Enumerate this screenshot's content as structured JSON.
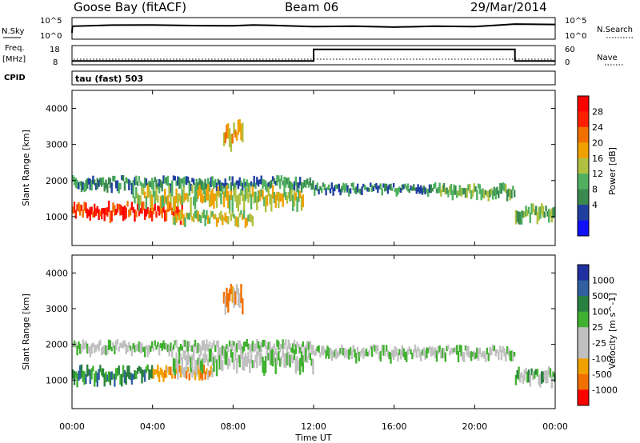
{
  "header": {
    "station": "Goose Bay (fitACF)",
    "beam": "Beam 06",
    "date": "29/Mar/2014"
  },
  "left_labels": {
    "nsky": "N.Sky",
    "nsky_ticks": [
      "10^5",
      "10^0"
    ],
    "freq_line1": "Freq.",
    "freq_line2": "[MHz]",
    "freq_ticks": [
      "18",
      "8"
    ],
    "cpid": "CPID"
  },
  "right_labels": {
    "nsearch": "N.Search",
    "nsearch_ticks": [
      "10^5",
      "10^0"
    ],
    "nave": "Nave",
    "nave_ticks": [
      "60",
      "0"
    ]
  },
  "cpid_text": "tau (fast) 503",
  "colors": {
    "power_scale": [
      "#1010ff",
      "#2040a0",
      "#3a8a50",
      "#50b060",
      "#b0c040",
      "#f0a000",
      "#f07000",
      "#ff2000",
      "#ff0000"
    ],
    "velocity_scale": [
      "#2030a0",
      "#3060a0",
      "#2a8040",
      "#40b030",
      "#c0c0c0",
      "#c0c0c0",
      "#f0a000",
      "#f07000",
      "#ff0000"
    ]
  },
  "chart_data": [
    {
      "type": "line",
      "name": "N.Sky / N.Search",
      "x": [
        0,
        0.02,
        2,
        4,
        6,
        8,
        9,
        10,
        12,
        14,
        16,
        18,
        20,
        22,
        24
      ],
      "values": [
        0.3,
        0.6,
        0.65,
        0.66,
        0.63,
        0.62,
        0.66,
        0.64,
        0.58,
        0.6,
        0.56,
        0.6,
        0.58,
        0.7,
        0.68
      ],
      "ylim": [
        "10^0",
        "10^5"
      ]
    },
    {
      "type": "line",
      "name": "Freq / Nave",
      "x": [
        0,
        12,
        12,
        22,
        22,
        24
      ],
      "freq_mhz": [
        10,
        10,
        16,
        16,
        10,
        10
      ],
      "ylim_freq": [
        8,
        18
      ],
      "ylim_nave": [
        0,
        60
      ]
    },
    {
      "type": "heatmap",
      "title": "",
      "xlabel": "",
      "ylabel": "Slant Range [km]",
      "xlim": [
        0,
        24
      ],
      "ylim": [
        200,
        4500
      ],
      "yticks": [
        "1000",
        "2000",
        "3000",
        "4000"
      ],
      "colorbar_label": "Power [dB]",
      "colorbar_ticks": [
        "28",
        "24",
        "20",
        "16",
        "12",
        "8",
        "4"
      ],
      "bands": [
        {
          "x0": 0,
          "x1": 12,
          "r0": 1750,
          "r1": 2150,
          "level": 2
        },
        {
          "x0": 0,
          "x1": 5.5,
          "r0": 950,
          "r1": 1450,
          "level": 7
        },
        {
          "x0": 5,
          "x1": 9,
          "r0": 800,
          "r1": 1200,
          "level": 4
        },
        {
          "x0": 3,
          "x1": 11.5,
          "r0": 1300,
          "r1": 1900,
          "level": 4
        },
        {
          "x0": 7.5,
          "x1": 8.5,
          "r0": 3000,
          "r1": 3700,
          "level": 5
        },
        {
          "x0": 12,
          "x1": 18,
          "r0": 1650,
          "r1": 1950,
          "level": 2
        },
        {
          "x0": 18,
          "x1": 22,
          "r0": 1550,
          "r1": 1950,
          "level": 3
        },
        {
          "x0": 22,
          "x1": 24,
          "r0": 900,
          "r1": 1400,
          "level": 3
        }
      ]
    },
    {
      "type": "heatmap",
      "title": "",
      "xlabel": "Time UT",
      "ylabel": "Slant Range [km]",
      "xlim": [
        0,
        24
      ],
      "ylim": [
        200,
        4500
      ],
      "xticks": [
        "00:00",
        "04:00",
        "08:00",
        "12:00",
        "16:00",
        "20:00",
        "00:00"
      ],
      "yticks": [
        "1000",
        "2000",
        "3000",
        "4000"
      ],
      "colorbar_label": "Velocity [m s^-1]",
      "colorbar_ticks": [
        "1000",
        "500",
        "100",
        "25",
        "-25",
        "-100",
        "-500",
        "-1000"
      ],
      "bands": [
        {
          "x0": 0,
          "x1": 12,
          "r0": 1750,
          "r1": 2150,
          "level": 4
        },
        {
          "x0": 0,
          "x1": 4,
          "r0": 950,
          "r1": 1450,
          "level": 2
        },
        {
          "x0": 4,
          "x1": 7,
          "r0": 1000,
          "r1": 1450,
          "level": 6
        },
        {
          "x0": 5,
          "x1": 12,
          "r0": 1300,
          "r1": 1900,
          "level": 4
        },
        {
          "x0": 7.5,
          "x1": 8.5,
          "r0": 3000,
          "r1": 3700,
          "level": 6
        },
        {
          "x0": 12,
          "x1": 22,
          "r0": 1600,
          "r1": 2000,
          "level": 4
        },
        {
          "x0": 22,
          "x1": 24,
          "r0": 900,
          "r1": 1400,
          "level": 3
        }
      ]
    }
  ]
}
